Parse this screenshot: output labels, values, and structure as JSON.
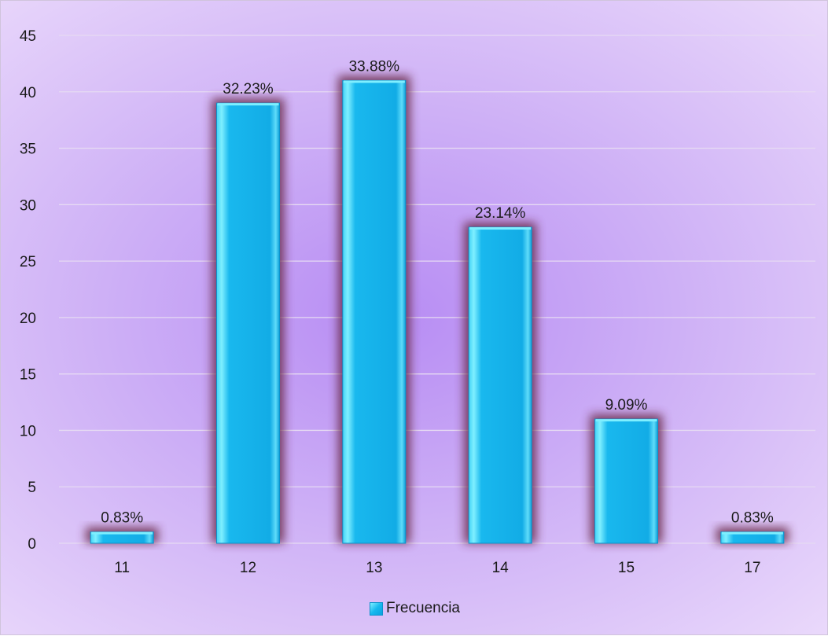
{
  "chart_data": {
    "type": "bar",
    "categories": [
      "11",
      "12",
      "13",
      "14",
      "15",
      "17"
    ],
    "series": [
      {
        "name": "Frecuencia",
        "values": [
          1,
          39,
          41,
          28,
          11,
          1
        ],
        "data_labels": [
          "0.83%",
          "32.23%",
          "33.88%",
          "23.14%",
          "9.09%",
          "0.83%"
        ]
      }
    ],
    "ylim": [
      0,
      45
    ],
    "yticks": [
      "0",
      "5",
      "10",
      "15",
      "20",
      "25",
      "30",
      "35",
      "40",
      "45"
    ],
    "grid": true,
    "legend": "bottom",
    "colors": {
      "bar_fill": "#17b5ec",
      "bar_highlight": "#7fefff",
      "bar_glow": "#6b2a4a",
      "gridline": "#e6daf3"
    }
  }
}
